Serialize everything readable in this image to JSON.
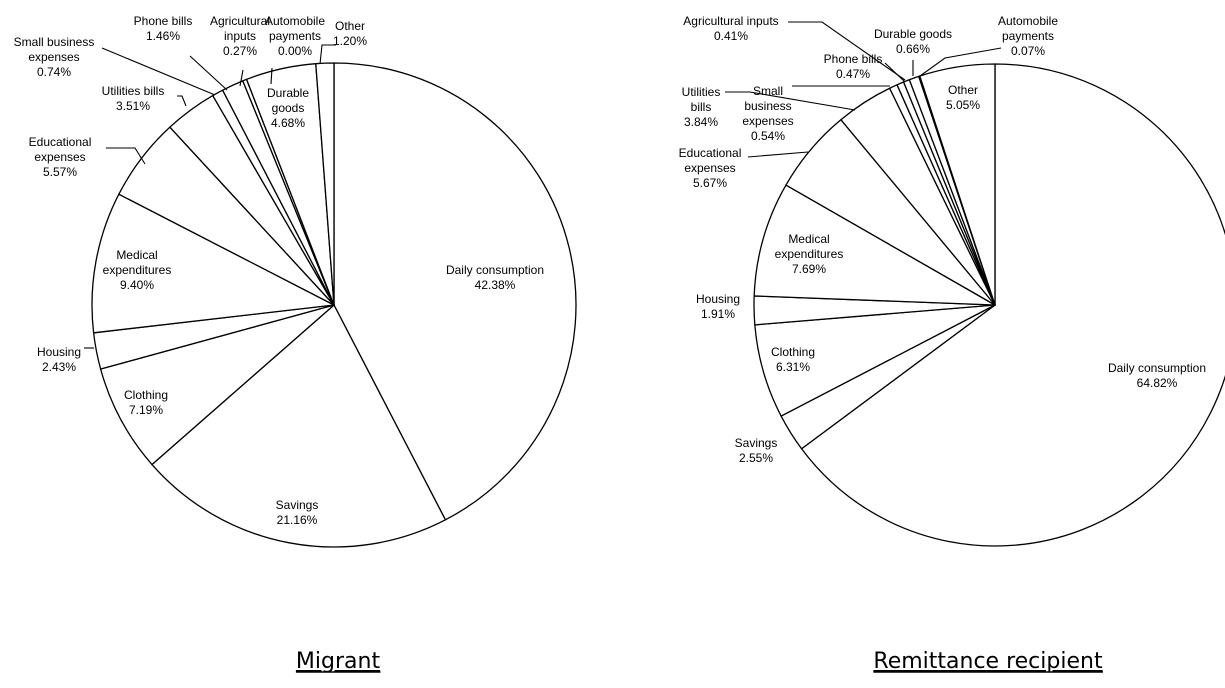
{
  "chart_data": [
    {
      "type": "pie",
      "caption": "Migrant",
      "start_angle_deg": 0,
      "direction": "clockwise",
      "slices": [
        {
          "name": "Daily consumption",
          "value": 42.38,
          "label": "42.38%"
        },
        {
          "name": "Savings",
          "value": 21.16,
          "label": "21.16%"
        },
        {
          "name": "Clothing",
          "value": 7.19,
          "label": "7.19%"
        },
        {
          "name": "Housing",
          "value": 2.43,
          "label": "2.43%"
        },
        {
          "name": "Medical expenditures",
          "value": 9.4,
          "label": "9.40%"
        },
        {
          "name": "Educational expenses",
          "value": 5.57,
          "label": "5.57%"
        },
        {
          "name": "Utilities bills",
          "value": 3.51,
          "label": "3.51%"
        },
        {
          "name": "Small business expenses",
          "value": 0.74,
          "label": "0.74%"
        },
        {
          "name": "Phone bills",
          "value": 1.46,
          "label": "1.46%"
        },
        {
          "name": "Agricultural inputs",
          "value": 0.27,
          "label": "0.27%"
        },
        {
          "name": "Automobile payments",
          "value": 0.0,
          "label": "0.00%"
        },
        {
          "name": "Durable goods",
          "value": 4.68,
          "label": "4.68%"
        },
        {
          "name": "Other",
          "value": 1.2,
          "label": "1.20%"
        }
      ]
    },
    {
      "type": "pie",
      "caption": "Remittance recipient",
      "start_angle_deg": 0,
      "direction": "clockwise",
      "slices": [
        {
          "name": "Daily consumption",
          "value": 64.82,
          "label": "64.82%"
        },
        {
          "name": "Savings",
          "value": 2.55,
          "label": "2.55%"
        },
        {
          "name": "Clothing",
          "value": 6.31,
          "label": "6.31%"
        },
        {
          "name": "Housing",
          "value": 1.91,
          "label": "1.91%"
        },
        {
          "name": "Medical expenditures",
          "value": 7.69,
          "label": "7.69%"
        },
        {
          "name": "Educational expenses",
          "value": 5.67,
          "label": "5.67%"
        },
        {
          "name": "Utilities bills",
          "value": 3.84,
          "label": "3.84%"
        },
        {
          "name": "Small business expenses",
          "value": 0.54,
          "label": "0.54%"
        },
        {
          "name": "Phone bills",
          "value": 0.47,
          "label": "0.47%"
        },
        {
          "name": "Agricultural inputs",
          "value": 0.41,
          "label": "0.41%"
        },
        {
          "name": "Durable goods",
          "value": 0.66,
          "label": "0.66%"
        },
        {
          "name": "Automobile payments",
          "value": 0.07,
          "label": "0.07%"
        },
        {
          "name": "Other",
          "value": 5.05,
          "label": "5.05%"
        }
      ]
    }
  ]
}
